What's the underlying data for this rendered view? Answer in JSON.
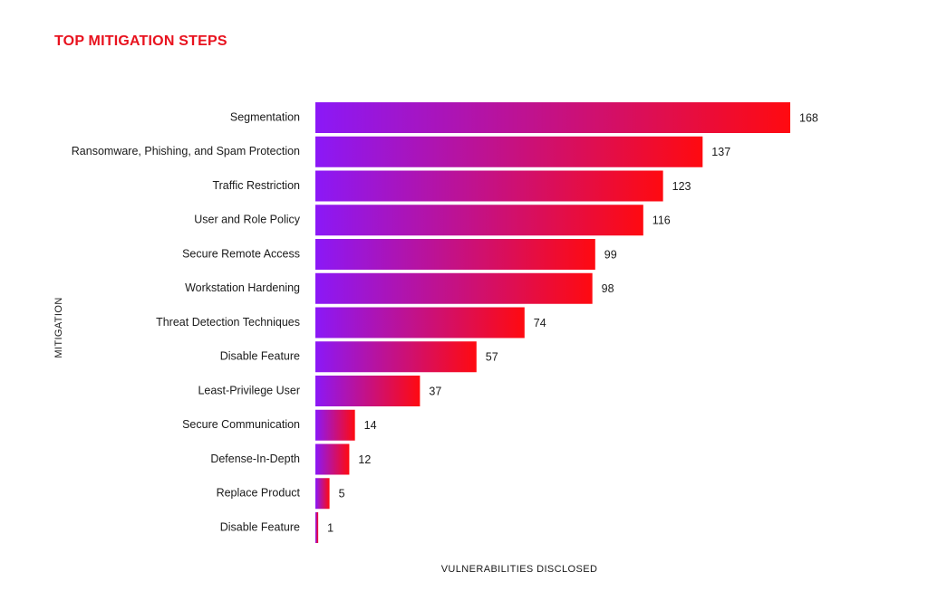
{
  "colors": {
    "title": "#e8121e",
    "bar_start": "#8b18f7",
    "bar_end": "#ff0a10",
    "text": "#1a1a1a"
  },
  "chart_data": {
    "type": "bar",
    "orientation": "horizontal",
    "title": "TOP MITIGATION STEPS",
    "xlabel": "VULNERABILITIES DISCLOSED",
    "ylabel": "MITIGATION",
    "categories": [
      "Segmentation",
      "Ransomware, Phishing, and Spam Protection",
      "Traffic Restriction",
      "User and Role Policy",
      "Secure Remote Access",
      "Workstation Hardening",
      "Threat Detection Techniques",
      "Disable Feature",
      "Least-Privilege User",
      "Secure Communication",
      "Defense-In-Depth",
      "Replace Product",
      "Disable Feature"
    ],
    "values": [
      168,
      137,
      123,
      116,
      99,
      98,
      74,
      57,
      37,
      14,
      12,
      5,
      1
    ],
    "xlim": [
      0,
      168
    ],
    "grid": false,
    "legend": "none"
  }
}
